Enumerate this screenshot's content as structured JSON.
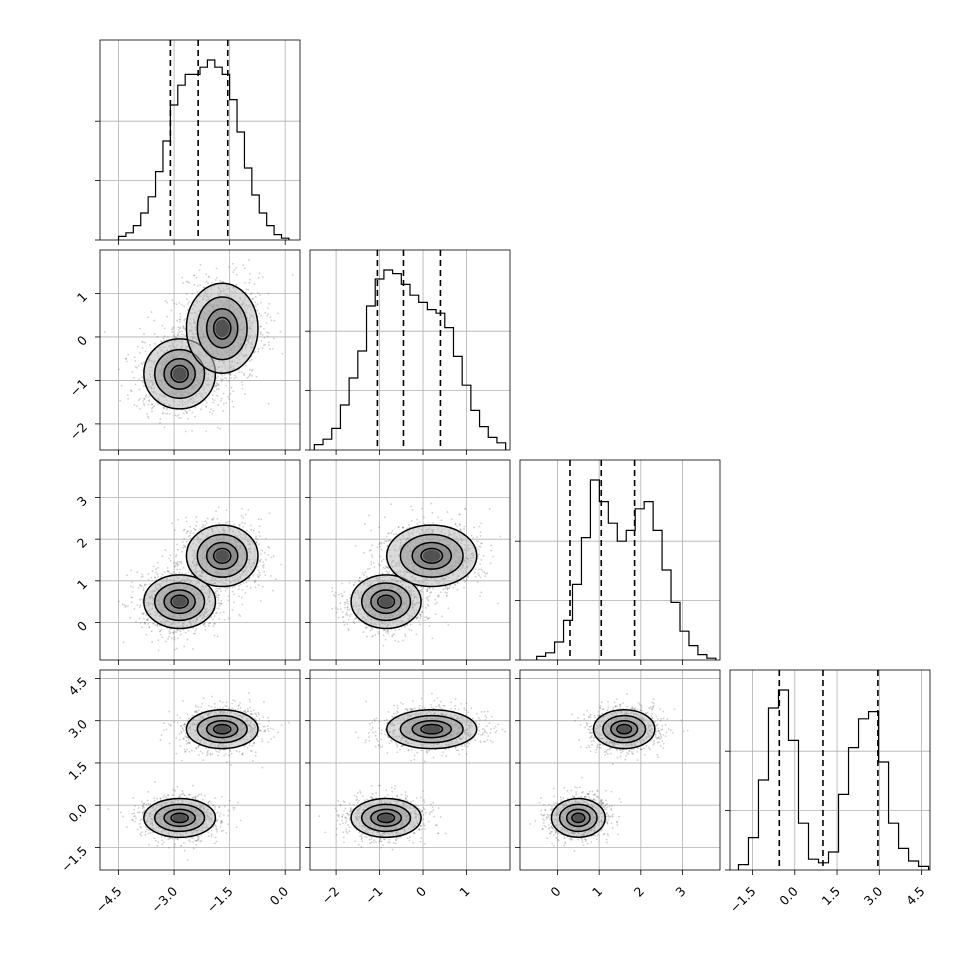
{
  "chart_data": {
    "type": "corner",
    "title": "",
    "parameters": [
      "",
      "",
      "",
      ""
    ],
    "ranges": [
      [
        -5.0,
        0.4
      ],
      [
        -2.6,
        2.0
      ],
      [
        -0.9,
        3.9
      ],
      [
        -2.3,
        4.8
      ]
    ],
    "ticks": [
      {
        "values": [
          -4.5,
          -3.0,
          -1.5,
          0.0
        ],
        "labels": [
          "−4.5",
          "−3.0",
          "−1.5",
          "0.0"
        ]
      },
      {
        "values": [
          -2,
          -1,
          0,
          1
        ],
        "labels": [
          "−2",
          "−1",
          "0",
          "1"
        ]
      },
      {
        "values": [
          0,
          1,
          2,
          3
        ],
        "labels": [
          "0",
          "1",
          "2",
          "3"
        ]
      },
      {
        "values": [
          -1.5,
          0.0,
          1.5,
          3.0,
          4.5
        ],
        "labels": [
          "−1.5",
          "0.0",
          "1.5",
          "3.0",
          "4.5"
        ]
      }
    ],
    "quantiles": [
      [
        -3.1,
        -2.35,
        -1.55
      ],
      [
        -1.05,
        -0.45,
        0.4
      ],
      [
        0.3,
        1.05,
        1.85
      ],
      [
        -0.55,
        1.0,
        2.95
      ]
    ],
    "histograms": [
      {
        "bins": [
          -4.5,
          0.1
        ],
        "counts": [
          2,
          4,
          8,
          15,
          24,
          38,
          55,
          75,
          86,
          92,
          92,
          96,
          100,
          96,
          92,
          78,
          60,
          40,
          25,
          15,
          8,
          3,
          1
        ]
      },
      {
        "bins": [
          -2.5,
          1.9
        ],
        "counts": [
          3,
          6,
          12,
          25,
          40,
          55,
          80,
          95,
          100,
          98,
          92,
          86,
          82,
          78,
          76,
          68,
          52,
          36,
          22,
          13,
          7,
          4
        ]
      },
      {
        "bins": [
          -0.5,
          3.8
        ],
        "counts": [
          2,
          4,
          10,
          22,
          42,
          68,
          100,
          88,
          76,
          66,
          72,
          84,
          88,
          72,
          50,
          32,
          16,
          8,
          3,
          1
        ]
      },
      {
        "bins": [
          -2.0,
          4.75
        ],
        "counts": [
          3,
          18,
          50,
          90,
          100,
          72,
          26,
          6,
          4,
          10,
          42,
          68,
          84,
          88,
          60,
          26,
          12,
          5,
          2
        ]
      }
    ],
    "modes": [
      {
        "weight": 0.5,
        "mean": [
          -2.85,
          -0.85,
          0.5,
          -0.45
        ],
        "sd": [
          0.42,
          0.35,
          0.28,
          0.3
        ]
      },
      {
        "weight": 0.5,
        "mean": [
          -1.7,
          0.2,
          1.6,
          2.7
        ],
        "sd": [
          0.42,
          0.45,
          0.32,
          0.3
        ]
      }
    ],
    "grid": true
  }
}
